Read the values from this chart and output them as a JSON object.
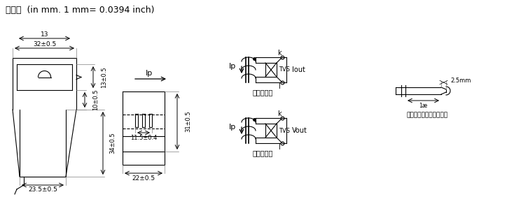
{
  "title": "尺寸图  (in mm. 1 mm= 0.0394 inch)",
  "title_fontsize": 9,
  "bg_color": "#ffffff",
  "line_color": "#000000",
  "dim1": "32±0.5",
  "dim2": "13",
  "dim3": "10±0.5",
  "dim4": "13±0.5",
  "dim5": "34±0.5",
  "dim6": "23.5±0.5",
  "dim7": "Ip",
  "dim8": "31±0.5",
  "dim9": "11.5±0.4",
  "dim10": "22±0.5",
  "label_Iout": "Iout",
  "label_Vout": "Vout",
  "label_current": "电流输出型",
  "label_voltage": "电压输出型",
  "label_note": "（可提供其它接线方式）",
  "label_2mm": "2.5mm",
  "label_1mm": "1æ"
}
